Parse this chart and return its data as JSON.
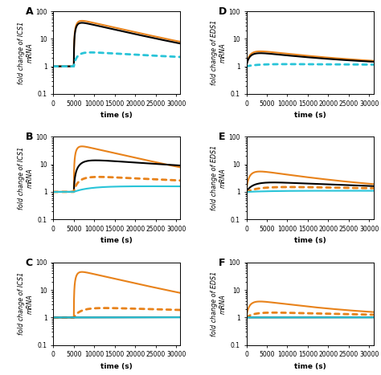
{
  "panels": [
    {
      "label": "A",
      "ylabel": "fold change of ICS1\nmRNA",
      "row": 0,
      "col": 0,
      "curves": [
        {
          "color": "orange",
          "ls": "solid",
          "lw": 1.5,
          "params": {
            "k_on": 5000,
            "k_rise": 0.0015,
            "k_decay": 8e-05,
            "peak": 45,
            "base": 1.0
          }
        },
        {
          "color": "black",
          "ls": "solid",
          "lw": 1.5,
          "params": {
            "k_on": 5000,
            "k_rise": 0.0015,
            "k_decay": 8e-05,
            "peak": 38,
            "base": 1.0
          }
        },
        {
          "color": "cyan",
          "ls": "dotted",
          "lw": 2.0,
          "params": {
            "k_on": 5000,
            "k_rise": 0.0008,
            "k_decay": 3e-05,
            "peak": 3.2,
            "base": 1.0
          }
        }
      ]
    },
    {
      "label": "D",
      "ylabel": "fold change of EDS1\nmRNA",
      "row": 0,
      "col": 1,
      "curves": [
        {
          "color": "orange",
          "ls": "solid",
          "lw": 1.5,
          "params": {
            "k_on": 0,
            "k_rise": 0.0008,
            "k_decay": 5.5e-05,
            "peak": 3.5,
            "base": 1.0
          }
        },
        {
          "color": "black",
          "ls": "solid",
          "lw": 1.5,
          "params": {
            "k_on": 0,
            "k_rise": 0.0008,
            "k_decay": 5.5e-05,
            "peak": 3.0,
            "base": 1.0
          }
        },
        {
          "color": "cyan",
          "ls": "dotted",
          "lw": 2.0,
          "params": {
            "k_on": 0,
            "k_rise": 0.0003,
            "k_decay": 1.5e-05,
            "peak": 1.2,
            "base": 1.0
          }
        }
      ]
    },
    {
      "label": "B",
      "ylabel": "fold change of ICS1\nmRNA",
      "row": 1,
      "col": 0,
      "curves": [
        {
          "color": "orange",
          "ls": "solid",
          "lw": 1.5,
          "params": {
            "k_on": 5000,
            "k_rise": 0.0015,
            "k_decay": 8e-05,
            "peak": 45,
            "base": 1.0
          }
        },
        {
          "color": "black",
          "ls": "solid",
          "lw": 1.5,
          "params": {
            "k_on": 5000,
            "k_rise": 0.0006,
            "k_decay": 2.5e-05,
            "peak": 14,
            "base": 1.0
          }
        },
        {
          "color": "orange",
          "ls": "dotted",
          "lw": 2.0,
          "params": {
            "k_on": 5000,
            "k_rise": 0.0005,
            "k_decay": 2.5e-05,
            "peak": 3.5,
            "base": 1.0
          }
        },
        {
          "color": "cyan",
          "ls": "solid",
          "lw": 1.5,
          "params": {
            "k_on": 5000,
            "k_rise": 0.0002,
            "k_decay": 5e-06,
            "peak": 1.6,
            "base": 1.0
          }
        }
      ]
    },
    {
      "label": "E",
      "ylabel": "fold change of EDS1\nmRNA",
      "row": 1,
      "col": 1,
      "curves": [
        {
          "color": "orange",
          "ls": "solid",
          "lw": 1.5,
          "params": {
            "k_on": 0,
            "k_rise": 0.0008,
            "k_decay": 6e-05,
            "peak": 5.5,
            "base": 1.0
          }
        },
        {
          "color": "black",
          "ls": "solid",
          "lw": 1.5,
          "params": {
            "k_on": 0,
            "k_rise": 0.0004,
            "k_decay": 3e-05,
            "peak": 2.2,
            "base": 1.0
          }
        },
        {
          "color": "orange",
          "ls": "dotted",
          "lw": 2.0,
          "params": {
            "k_on": 0,
            "k_rise": 0.00025,
            "k_decay": 2e-05,
            "peak": 1.5,
            "base": 1.0
          }
        },
        {
          "color": "cyan",
          "ls": "solid",
          "lw": 1.5,
          "params": {
            "k_on": 0,
            "k_rise": 0.00012,
            "k_decay": 8e-06,
            "peak": 1.1,
            "base": 1.0
          }
        }
      ]
    },
    {
      "label": "C",
      "ylabel": "fold change of ICS1\nmRNA",
      "row": 2,
      "col": 0,
      "curves": [
        {
          "color": "orange",
          "ls": "solid",
          "lw": 1.5,
          "params": {
            "k_on": 5000,
            "k_rise": 0.0015,
            "k_decay": 8e-05,
            "peak": 45,
            "base": 1.0
          }
        },
        {
          "color": "orange",
          "ls": "dotted",
          "lw": 2.0,
          "params": {
            "k_on": 5000,
            "k_rise": 0.0004,
            "k_decay": 2e-05,
            "peak": 2.2,
            "base": 1.0
          }
        },
        {
          "color": "black",
          "ls": "solid",
          "lw": 1.5,
          "params": {
            "k_on": 5000,
            "k_rise": 1e-05,
            "k_decay": 1e-06,
            "peak": 1.02,
            "base": 1.0
          }
        },
        {
          "color": "cyan",
          "ls": "solid",
          "lw": 1.5,
          "params": {
            "k_on": 5000,
            "k_rise": 1e-05,
            "k_decay": 1e-06,
            "peak": 1.01,
            "base": 1.0
          }
        }
      ]
    },
    {
      "label": "F",
      "ylabel": "fold change of EDS1\nmRNA",
      "row": 2,
      "col": 1,
      "curves": [
        {
          "color": "orange",
          "ls": "solid",
          "lw": 1.5,
          "params": {
            "k_on": 0,
            "k_rise": 0.0008,
            "k_decay": 6e-05,
            "peak": 3.8,
            "base": 1.0
          }
        },
        {
          "color": "orange",
          "ls": "dotted",
          "lw": 2.0,
          "params": {
            "k_on": 0,
            "k_rise": 0.0004,
            "k_decay": 3e-05,
            "peak": 1.5,
            "base": 1.0
          }
        },
        {
          "color": "black",
          "ls": "solid",
          "lw": 1.5,
          "params": {
            "k_on": 0,
            "k_rise": 1e-05,
            "k_decay": 1e-06,
            "peak": 1.01,
            "base": 1.0
          }
        },
        {
          "color": "cyan",
          "ls": "solid",
          "lw": 1.5,
          "params": {
            "k_on": 0,
            "k_rise": 1e-05,
            "k_decay": 1e-06,
            "peak": 1.005,
            "base": 1.0
          }
        }
      ]
    }
  ],
  "colors": {
    "orange": "#E8821A",
    "black": "#000000",
    "cyan": "#29C4D8"
  },
  "xlabel": "time (s)",
  "ylim_log": [
    0.1,
    100
  ],
  "xlim": [
    0,
    31000
  ],
  "xticks": [
    0,
    5000,
    10000,
    15000,
    20000,
    25000,
    30000
  ],
  "xticklabels": [
    "0",
    "5000",
    "10000",
    "15000",
    "20000",
    "25000",
    "30000"
  ],
  "yticks": [
    0.1,
    1,
    10,
    100
  ],
  "yticklabels": [
    "0.1",
    "1",
    "10",
    "100"
  ]
}
